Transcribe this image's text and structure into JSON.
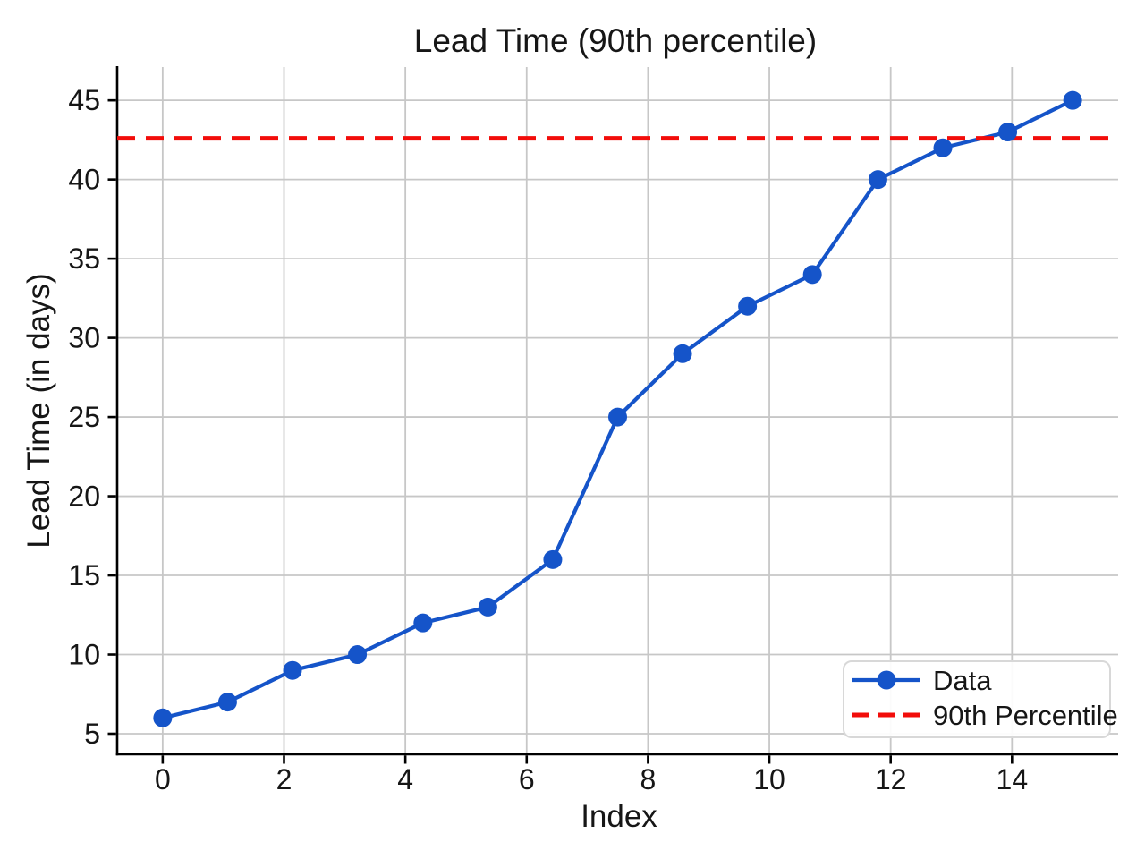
{
  "figure": {
    "background": "#ffffff"
  },
  "chart_data": {
    "type": "line",
    "title": "Lead Time (90th percentile)",
    "xlabel": "Index",
    "ylabel": "Lead Time (in days)",
    "x": [
      0,
      1.07,
      2.14,
      3.21,
      4.29,
      5.36,
      6.43,
      7.5,
      8.57,
      9.64,
      10.71,
      11.79,
      12.86,
      13.93,
      15
    ],
    "series": [
      {
        "name": "Data",
        "values": [
          6,
          7,
          9,
          10,
          12,
          13,
          16,
          25,
          29,
          32,
          34,
          40,
          42,
          43,
          45
        ],
        "color": "#1554c9",
        "marker": "circle",
        "line_style": "solid"
      }
    ],
    "reference_lines": [
      {
        "name": "90th Percentile",
        "value": 42.6,
        "color": "#f20d0a",
        "line_style": "dashed"
      }
    ],
    "xticks": [
      0,
      2,
      4,
      6,
      8,
      10,
      12,
      14
    ],
    "yticks": [
      5,
      10,
      15,
      20,
      25,
      30,
      35,
      40,
      45
    ],
    "xlim": [
      -0.75,
      15.75
    ],
    "ylim": [
      3.7,
      47.1
    ],
    "grid": true,
    "grid_color": "#c7c7c7",
    "spine_color": "#000000",
    "legend": {
      "position": "lower right",
      "entries": [
        {
          "label": "Data"
        },
        {
          "label": "90th Percentile"
        }
      ]
    }
  }
}
